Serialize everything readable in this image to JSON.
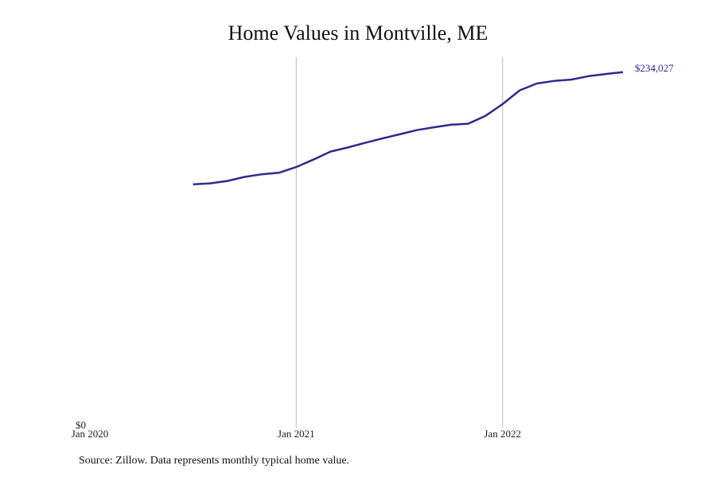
{
  "title": "Home Values in Montville, ME",
  "source": "Source: Zillow. Data represents monthly typical home value.",
  "colors": {
    "line": "#2e2a8c",
    "grid": "#bbbbbb"
  },
  "chart_data": {
    "type": "line",
    "title": "Home Values in Montville, ME",
    "xlabel": "",
    "ylabel": "",
    "x_ticks": [
      "Jan 2020",
      "Jan 2021",
      "Jan 2022"
    ],
    "y_ticks": [
      "$0"
    ],
    "ylim": [
      0,
      245000
    ],
    "xlim": [
      "2020-01",
      "2022-11"
    ],
    "grid": "vertical lines at year ticks",
    "end_label": "$234,027",
    "series": [
      {
        "x": [
          "2020-07",
          "2020-08",
          "2020-09",
          "2020-10",
          "2020-11",
          "2020-12",
          "2021-01",
          "2021-02",
          "2021-03",
          "2021-04",
          "2021-05",
          "2021-06",
          "2021-07",
          "2021-08",
          "2021-09",
          "2021-10",
          "2021-11",
          "2021-12",
          "2022-01",
          "2022-02",
          "2022-03",
          "2022-04",
          "2022-05",
          "2022-06",
          "2022-07",
          "2022-08"
        ],
        "values": [
          159500,
          160200,
          161800,
          164500,
          166200,
          167200,
          171000,
          176000,
          181300,
          184000,
          187100,
          190000,
          192700,
          195500,
          197400,
          199100,
          199800,
          205000,
          212800,
          222000,
          226500,
          228200,
          229100,
          231400,
          232800,
          234027
        ]
      }
    ]
  }
}
